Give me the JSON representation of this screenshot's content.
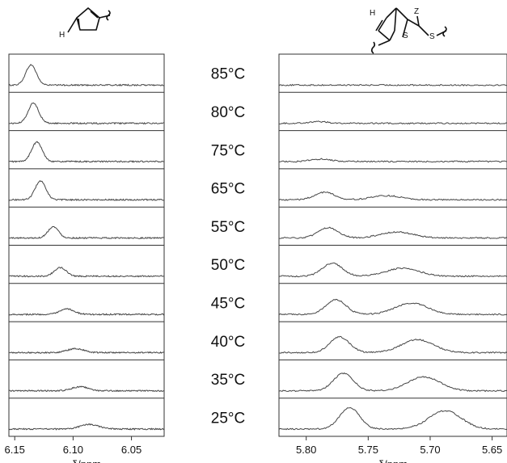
{
  "chart_data": [
    {
      "type": "line",
      "panel": "left",
      "structure_atom_label": "H",
      "xlabel": "δ/ppm",
      "xlim": [
        6.155,
        6.022
      ],
      "x_ticks": [
        6.15,
        6.1,
        6.05
      ],
      "x_tick_labels": [
        "6.15",
        "6.10",
        "6.05"
      ],
      "series": [
        {
          "temperature": "85°C",
          "peaks": [
            {
              "center": 6.136,
              "width": 0.0045,
              "height": 0.75
            }
          ]
        },
        {
          "temperature": "80°C",
          "peaks": [
            {
              "center": 6.134,
              "width": 0.0045,
              "height": 0.75
            }
          ]
        },
        {
          "temperature": "75°C",
          "peaks": [
            {
              "center": 6.131,
              "width": 0.0045,
              "height": 0.72
            }
          ]
        },
        {
          "temperature": "65°C",
          "peaks": [
            {
              "center": 6.128,
              "width": 0.0045,
              "height": 0.7
            }
          ]
        },
        {
          "temperature": "55°C",
          "peaks": [
            {
              "center": 6.117,
              "width": 0.0045,
              "height": 0.42
            }
          ]
        },
        {
          "temperature": "50°C",
          "peaks": [
            {
              "center": 6.111,
              "width": 0.005,
              "height": 0.32
            }
          ]
        },
        {
          "temperature": "45°C",
          "peaks": [
            {
              "center": 6.105,
              "width": 0.006,
              "height": 0.2
            }
          ]
        },
        {
          "temperature": "40°C",
          "peaks": [
            {
              "center": 6.098,
              "width": 0.007,
              "height": 0.15
            }
          ]
        },
        {
          "temperature": "35°C",
          "peaks": [
            {
              "center": 6.094,
              "width": 0.007,
              "height": 0.15
            }
          ]
        },
        {
          "temperature": "25°C",
          "peaks": [
            {
              "center": 6.086,
              "width": 0.008,
              "height": 0.17
            }
          ]
        }
      ]
    },
    {
      "type": "line",
      "panel": "right",
      "structure_atom_labels": [
        "H",
        "Z",
        "S",
        "S"
      ],
      "xlabel": "δ/ppm",
      "xlim": [
        5.822,
        5.638
      ],
      "x_ticks": [
        5.8,
        5.75,
        5.7,
        5.65
      ],
      "x_tick_labels": [
        "5.80",
        "5.75",
        "5.70",
        "5.65"
      ],
      "series": [
        {
          "temperature": "85°C",
          "peaks": []
        },
        {
          "temperature": "80°C",
          "peaks": [
            {
              "center": 5.79,
              "width": 0.008,
              "height": 0.06
            }
          ]
        },
        {
          "temperature": "75°C",
          "peaks": [
            {
              "center": 5.788,
              "width": 0.008,
              "height": 0.09
            }
          ]
        },
        {
          "temperature": "65°C",
          "peaks": [
            {
              "center": 5.785,
              "width": 0.008,
              "height": 0.28
            },
            {
              "center": 5.735,
              "width": 0.012,
              "height": 0.15
            }
          ]
        },
        {
          "temperature": "55°C",
          "peaks": [
            {
              "center": 5.782,
              "width": 0.008,
              "height": 0.38
            },
            {
              "center": 5.727,
              "width": 0.013,
              "height": 0.22
            }
          ]
        },
        {
          "temperature": "50°C",
          "peaks": [
            {
              "center": 5.779,
              "width": 0.008,
              "height": 0.48
            },
            {
              "center": 5.722,
              "width": 0.013,
              "height": 0.3
            }
          ]
        },
        {
          "temperature": "45°C",
          "peaks": [
            {
              "center": 5.776,
              "width": 0.008,
              "height": 0.55
            },
            {
              "center": 5.715,
              "width": 0.013,
              "height": 0.42
            }
          ]
        },
        {
          "temperature": "40°C",
          "peaks": [
            {
              "center": 5.773,
              "width": 0.008,
              "height": 0.58
            },
            {
              "center": 5.71,
              "width": 0.013,
              "height": 0.48
            }
          ]
        },
        {
          "temperature": "35°C",
          "peaks": [
            {
              "center": 5.77,
              "width": 0.008,
              "height": 0.65
            },
            {
              "center": 5.705,
              "width": 0.013,
              "height": 0.52
            }
          ]
        },
        {
          "temperature": "25°C",
          "peaks": [
            {
              "center": 5.765,
              "width": 0.008,
              "height": 0.8
            },
            {
              "center": 5.688,
              "width": 0.013,
              "height": 0.68
            }
          ]
        }
      ]
    }
  ]
}
